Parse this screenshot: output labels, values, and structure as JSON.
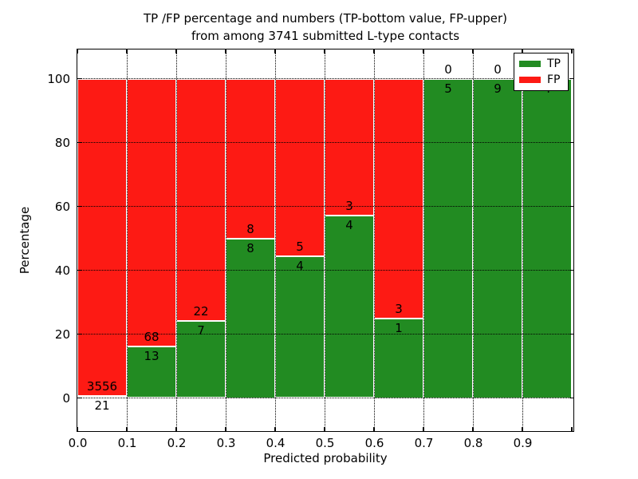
{
  "chart_data": {
    "type": "bar",
    "stacked": true,
    "title_line1": "TP /FP percentage and numbers (TP-bottom value, FP-upper)",
    "title_line2": "from among 3741 submitted L-type contacts",
    "xlabel": "Predicted probability",
    "ylabel": "Percentage",
    "x_tick_labels": [
      "0.0",
      "0.1",
      "0.2",
      "0.3",
      "0.4",
      "0.5",
      "0.6",
      "0.7",
      "0.8",
      "0.9"
    ],
    "y_tick_values": [
      0,
      20,
      40,
      60,
      80,
      100
    ],
    "xlim": [
      0.0,
      1.0
    ],
    "ylim": [
      -10,
      110
    ],
    "bin_width": 0.1,
    "bin_starts": [
      0.0,
      0.1,
      0.2,
      0.3,
      0.4,
      0.5,
      0.6,
      0.7,
      0.8,
      0.9
    ],
    "grid": true,
    "legend_position": "upper right",
    "series": [
      {
        "name": "TP",
        "color": "#228b22",
        "counts": [
          21,
          13,
          7,
          8,
          4,
          4,
          1,
          5,
          9,
          4
        ]
      },
      {
        "name": "FP",
        "color": "#fd1a14",
        "counts": [
          3556,
          68,
          22,
          8,
          5,
          3,
          3,
          0,
          0,
          0
        ]
      }
    ]
  }
}
